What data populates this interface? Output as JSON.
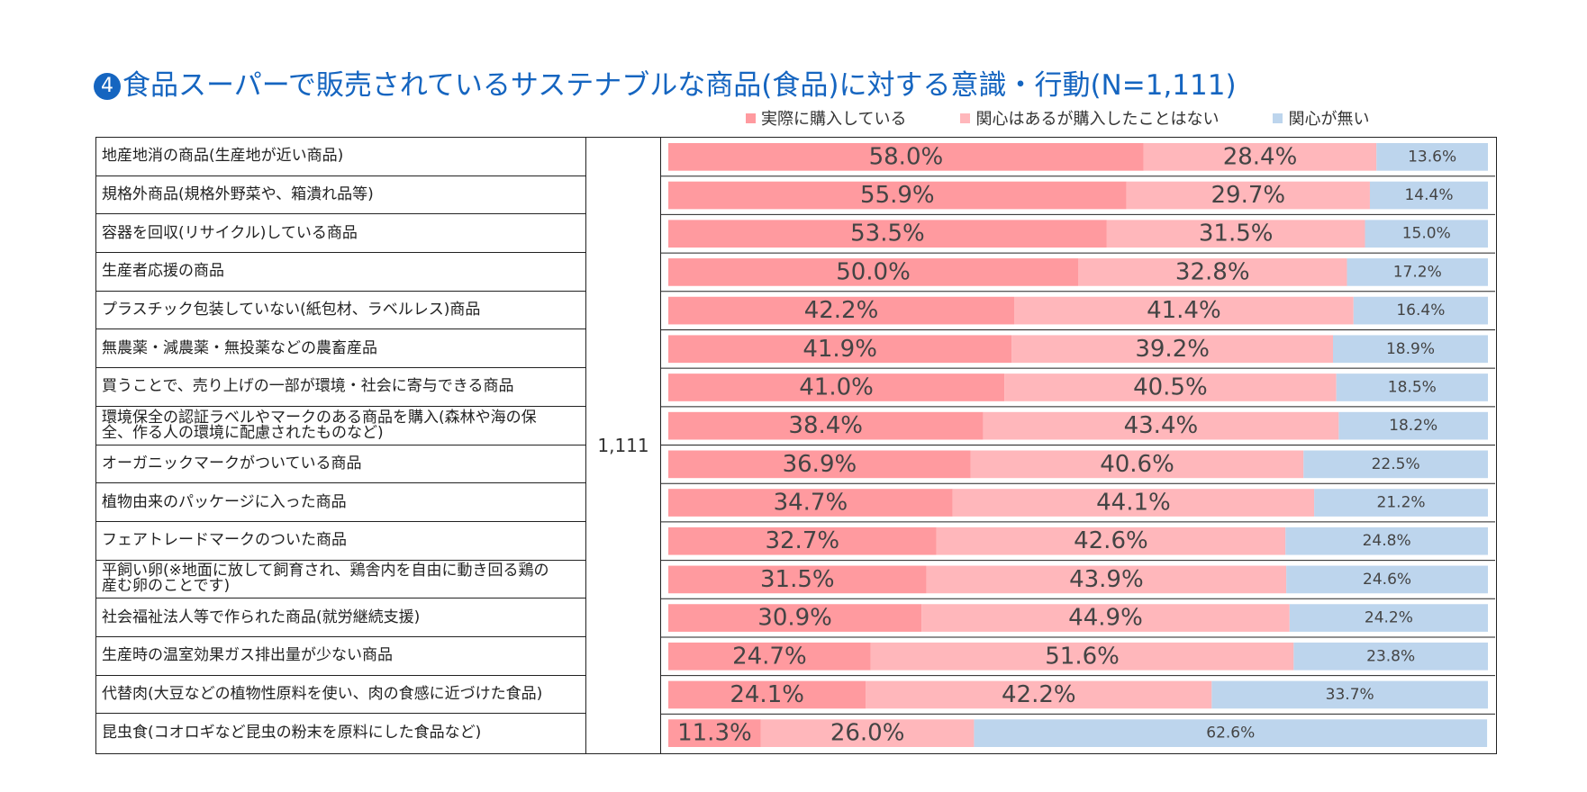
{
  "title": {
    "number": "4",
    "text": "食品スーパーで販売されているサステナブルな商品(食品)に対する意識・行動(N=1,111)"
  },
  "n_value": "1,111",
  "colors": {
    "purchased": "#ff9a9f",
    "interested": "#ffb7bb",
    "not_interested": "#bdd5ed",
    "title": "#1565c0"
  },
  "chart_data": {
    "type": "bar",
    "orientation": "horizontal",
    "stacked": true,
    "unit": "%",
    "xlim": [
      0,
      100
    ],
    "legend_position": "top-right",
    "categories": [
      "地産地消の商品(生産地が近い商品)",
      "規格外商品(規格外野菜や、箱潰れ品等)",
      "容器を回収(リサイクル)している商品",
      "生産者応援の商品",
      "プラスチック包装していない(紙包材、ラベルレス)商品",
      "無農薬・減農薬・無投薬などの農畜産品",
      "買うことで、売り上げの一部が環境・社会に寄与できる商品",
      "環境保全の認証ラベルやマークのある商品を購入(森林や海の保全、作る人の環境に配慮されたものなど)",
      "オーガニックマークがついている商品",
      "植物由来のパッケージに入った商品",
      "フェアトレードマークのついた商品",
      "平飼い卵(※地面に放して飼育され、鶏舎内を自由に動き回る鶏の産む卵のことです)",
      "社会福祉法人等で作られた商品(就労継続支援)",
      "生産時の温室効果ガス排出量が少ない商品",
      "代替肉(大豆などの植物性原料を使い、肉の食感に近づけた食品)",
      "昆虫食(コオロギなど昆虫の粉末を原料にした食品など)"
    ],
    "series": [
      {
        "name": "実際に購入している",
        "values": [
          58.0,
          55.9,
          53.5,
          50.0,
          42.2,
          41.9,
          41.0,
          38.4,
          36.9,
          34.7,
          32.7,
          31.5,
          30.9,
          24.7,
          24.1,
          11.3
        ]
      },
      {
        "name": "関心はあるが購入したことはない",
        "values": [
          28.4,
          29.7,
          31.5,
          32.8,
          41.4,
          39.2,
          40.5,
          43.4,
          40.6,
          44.1,
          42.6,
          43.9,
          44.9,
          51.6,
          42.2,
          26.0
        ]
      },
      {
        "name": "関心が無い",
        "values": [
          13.6,
          14.4,
          15.0,
          17.2,
          16.4,
          18.9,
          18.5,
          18.2,
          22.5,
          21.2,
          24.8,
          24.6,
          24.2,
          23.8,
          33.7,
          62.6
        ]
      }
    ]
  }
}
